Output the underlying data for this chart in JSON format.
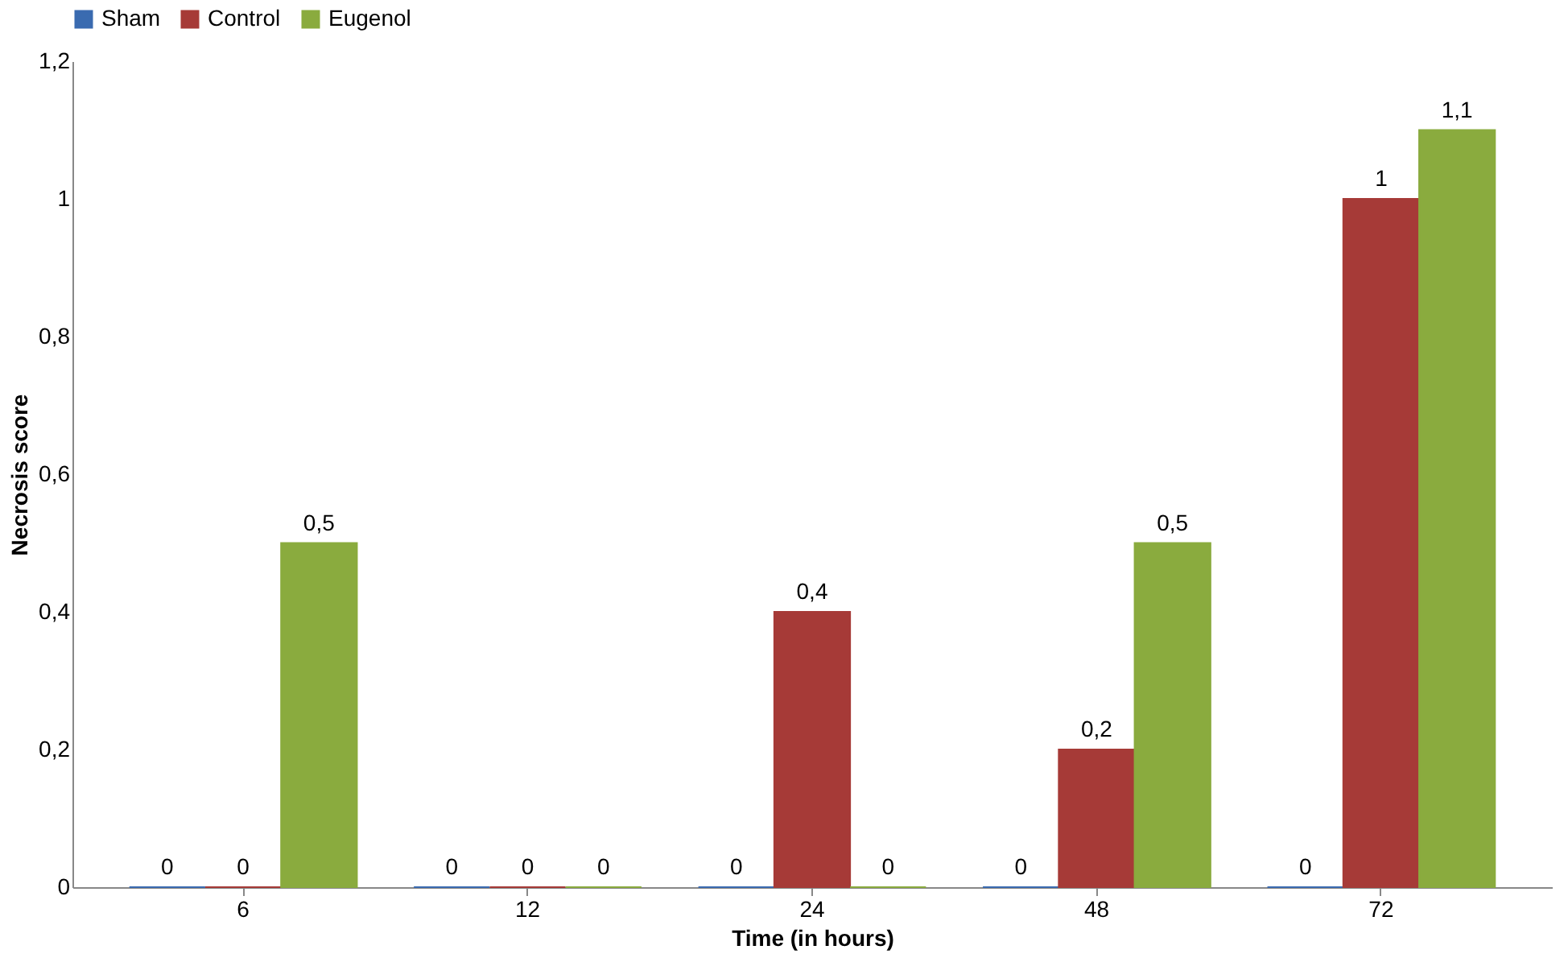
{
  "chart_data": {
    "type": "bar",
    "xlabel": "Time (in hours)",
    "ylabel": "Necrosis score",
    "categories": [
      "6",
      "12",
      "24",
      "48",
      "72"
    ],
    "series": [
      {
        "name": "Sham",
        "color": "#3a6bb0",
        "values": [
          0,
          0,
          0,
          0,
          0
        ],
        "value_labels": [
          "0",
          "0",
          "0",
          "0",
          "0"
        ]
      },
      {
        "name": "Control",
        "color": "#a63a37",
        "values": [
          0,
          0,
          0.4,
          0.2,
          1
        ],
        "value_labels": [
          "0",
          "0",
          "0,4",
          "0,2",
          "1"
        ]
      },
      {
        "name": "Eugenol",
        "color": "#8aab3e",
        "values": [
          0.5,
          0,
          0,
          0.5,
          1.1
        ],
        "value_labels": [
          "0,5",
          "0",
          "0",
          "0,5",
          "1,1"
        ]
      }
    ],
    "ylim": [
      0,
      1.2
    ],
    "yticks": [
      0,
      {
        "value": 0.2,
        "label": "0,2"
      },
      {
        "value": 0.4,
        "label": "0,4"
      },
      {
        "value": 0.6,
        "label": "0,6"
      },
      {
        "value": 0.8,
        "label": "0,8"
      },
      1,
      {
        "value": 1.2,
        "label": "1,2"
      }
    ],
    "grid": false,
    "legend": "top"
  }
}
